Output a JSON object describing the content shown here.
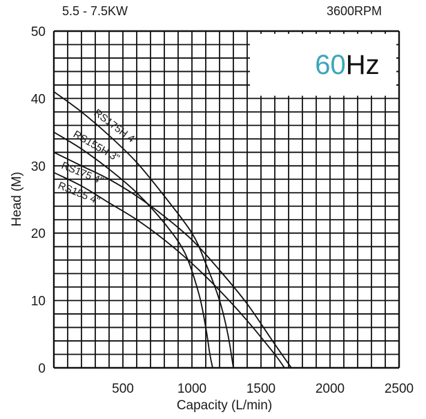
{
  "header": {
    "power": "5.5 - 7.5KW",
    "speed": "3600RPM"
  },
  "frequency_badge": {
    "number": "60",
    "unit": "Hz",
    "number_color": "#3aa6b9",
    "unit_color": "#111111"
  },
  "chart_data": {
    "type": "line",
    "xlabel": "Capacity (L/min)",
    "ylabel": "Head  (M)",
    "xlim": [
      0,
      2500
    ],
    "ylim": [
      0,
      50
    ],
    "x_ticks": [
      500,
      1000,
      1500,
      2000,
      2500
    ],
    "y_ticks": [
      0,
      10,
      20,
      30,
      40,
      50
    ],
    "x_minor_step": 100,
    "y_minor_step": 2,
    "grid": true,
    "series": [
      {
        "name": "RS175H 4\"",
        "points": [
          [
            0,
            41
          ],
          [
            200,
            38
          ],
          [
            400,
            34.5
          ],
          [
            600,
            30.5
          ],
          [
            800,
            25.5
          ],
          [
            1000,
            20
          ],
          [
            1100,
            15.5
          ],
          [
            1200,
            10
          ],
          [
            1260,
            5
          ],
          [
            1300,
            0
          ]
        ]
      },
      {
        "name": "RS155H 3\"",
        "points": [
          [
            0,
            35
          ],
          [
            200,
            32.5
          ],
          [
            400,
            29.5
          ],
          [
            600,
            26
          ],
          [
            800,
            21.5
          ],
          [
            950,
            17
          ],
          [
            1050,
            11
          ],
          [
            1100,
            6
          ],
          [
            1130,
            2
          ],
          [
            1150,
            0
          ]
        ]
      },
      {
        "name": "RS175 4\"",
        "points": [
          [
            0,
            32
          ],
          [
            200,
            30
          ],
          [
            400,
            28
          ],
          [
            600,
            25.5
          ],
          [
            800,
            22.5
          ],
          [
            1000,
            19
          ],
          [
            1200,
            14.5
          ],
          [
            1400,
            9.5
          ],
          [
            1600,
            3.5
          ],
          [
            1720,
            0
          ]
        ]
      },
      {
        "name": "RS155 4\"",
        "points": [
          [
            0,
            29
          ],
          [
            200,
            27
          ],
          [
            400,
            24.5
          ],
          [
            600,
            22
          ],
          [
            800,
            19
          ],
          [
            1000,
            15.5
          ],
          [
            1200,
            11.5
          ],
          [
            1400,
            7
          ],
          [
            1600,
            2
          ],
          [
            1670,
            0
          ]
        ]
      }
    ]
  }
}
